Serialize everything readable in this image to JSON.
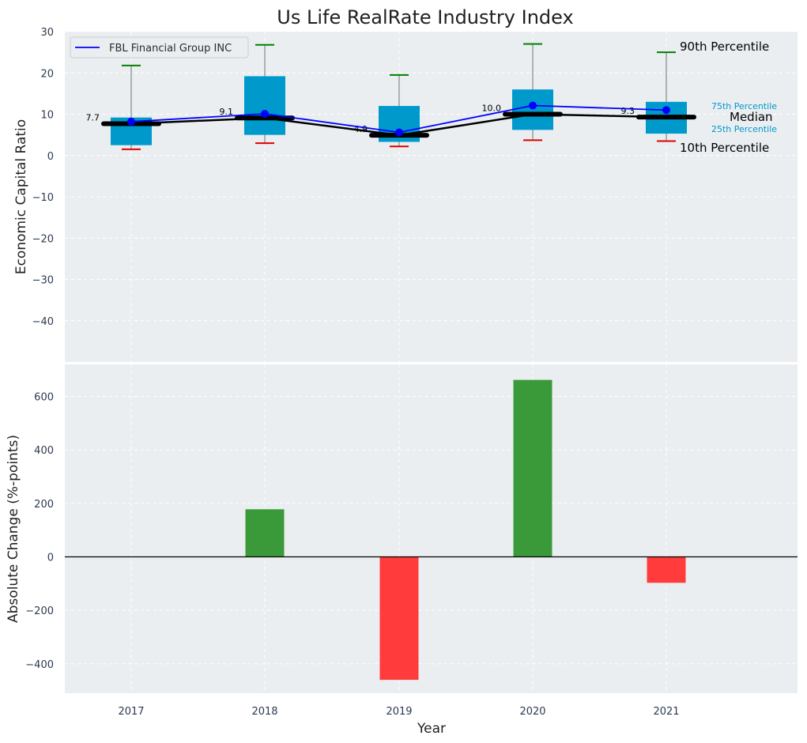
{
  "title": "Us Life RealRate Industry Index",
  "chart_data": [
    {
      "type": "box",
      "ylabel": "Economic Capital Ratio",
      "ylim": [
        -50,
        30
      ],
      "yticks": [
        30,
        20,
        10,
        0,
        -10,
        -20,
        -30,
        -40
      ],
      "ytick_labels": [
        "30",
        "20",
        "10",
        "0",
        "−10",
        "−20",
        "−30",
        "−40"
      ],
      "categories": [
        "2017",
        "2018",
        "2019",
        "2020",
        "2021"
      ],
      "p10": [
        1.5,
        3.0,
        2.2,
        3.7,
        3.5
      ],
      "p25": [
        2.5,
        5.0,
        3.3,
        6.2,
        5.3
      ],
      "median": [
        7.7,
        9.1,
        4.9,
        10.0,
        9.3
      ],
      "p75": [
        9.2,
        19.2,
        12.0,
        16.0,
        13.0
      ],
      "p90": [
        21.8,
        26.8,
        19.5,
        27.0,
        25.0
      ],
      "median_labels": [
        "7.7",
        "9.1",
        "4.9",
        "10.0",
        "9.3"
      ],
      "series": [
        {
          "name": "FBL Financial Group INC",
          "values": [
            8.2,
            10.1,
            5.6,
            12.1,
            11.0
          ]
        }
      ],
      "legend": {
        "label": "FBL Financial Group INC",
        "position": "top-left"
      },
      "key": {
        "p90": "90th Percentile",
        "p75": "75th Percentile",
        "median": "Median",
        "p25": "25th Percentile",
        "p10": "10th Percentile"
      }
    },
    {
      "type": "bar",
      "ylabel": "Absolute Change (%-points)",
      "xlabel": "Year",
      "ylim": [
        -510,
        720
      ],
      "yticks": [
        600,
        400,
        200,
        0,
        -200,
        -400
      ],
      "ytick_labels": [
        "600",
        "400",
        "200",
        "0",
        "−200",
        "−400"
      ],
      "categories": [
        "2017",
        "2018",
        "2019",
        "2020",
        "2021"
      ],
      "values": [
        0,
        178,
        -460,
        662,
        -97
      ]
    }
  ],
  "colors": {
    "plot_bg": "#eaeef0",
    "box": "#0099cc",
    "series": "#0000ff",
    "median_line": "#000000",
    "whisker_high": "#008000",
    "whisker_low": "#e00000",
    "bar_pos": "#3a9a3a",
    "bar_neg": "#ff3b3b",
    "key_quartile": "#0099cc"
  }
}
